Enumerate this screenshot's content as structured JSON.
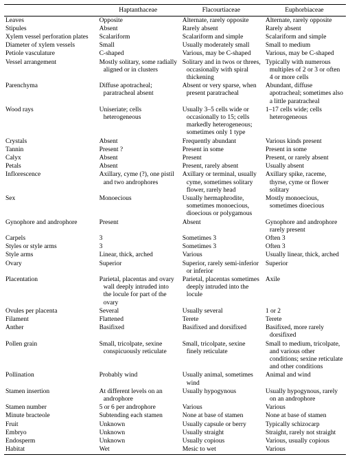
{
  "columns": [
    "Haptanthaceae",
    "Flacourtiaceae",
    "Euphorbiaceae"
  ],
  "rows": [
    {
      "l": "Leaves",
      "c": [
        "Opposite",
        "Alternate, rarely opposite",
        "Alternate, rarely opposite"
      ]
    },
    {
      "l": "Stipules",
      "c": [
        "Absent",
        "Rarely absent",
        "Rarely absent"
      ]
    },
    {
      "l": "Xylem vessel perforation plates",
      "c": [
        "Scalariform",
        "Scalariform and simple",
        "Scalariform and simple"
      ]
    },
    {
      "l": "Diameter of xylem vessels",
      "c": [
        "Small",
        "Usually moderately small",
        "Small to medium"
      ]
    },
    {
      "l": "Petiole vasculature",
      "c": [
        "C-shaped",
        "Various, may be C-shaped",
        "Various, may be C-shaped"
      ]
    },
    {
      "l": "Vessel arrangement",
      "c": [
        "Mostly solitary, some radially aligned or in clusters",
        "Solitary and in twos or threes, occasionally with spiral thickening",
        "Typically with numerous multiples of 2 or 3 or often 4 or more cells"
      ]
    },
    {
      "l": "Parenchyma",
      "c": [
        "Diffuse apotracheal; paratracheal absent",
        "Absent or very sparse, when present paratracheal",
        "Abundant, diffuse apotracheal; sometimes also a little paratracheal"
      ]
    },
    {
      "l": "Wood rays",
      "c": [
        "Uniseriate; cells heterogeneous",
        "Usually 3–5 cells wide or occasionally to 15; cells markedly heterogeneous; sometimes only 1 type",
        "1–17 cells wide; cells heterogeneous"
      ]
    },
    {
      "l": "Crystals",
      "c": [
        "Absent",
        "Frequently abundant",
        "Various kinds present"
      ]
    },
    {
      "l": "Tannin",
      "c": [
        "Present ?",
        "Present in some",
        "Present in some"
      ]
    },
    {
      "l": "Calyx",
      "c": [
        "Absent",
        "Present",
        "Present, or rarely absent"
      ]
    },
    {
      "l": "Petals",
      "c": [
        "Absent",
        "Present, rarely absent",
        "Usually absent"
      ]
    },
    {
      "l": "Inflorescence",
      "c": [
        "Axillary, cyme (?), one pistil and two androphores",
        "Axillary or terminal, usually cyme, sometimes solitary flower, rarely head",
        "Axillary spike, raceme, thyrse, cyme or flower solitary"
      ]
    },
    {
      "l": "Sex",
      "c": [
        "Monoecious",
        "Usually hermaphrodite, sometimes monoecious, dioecious or polygamous",
        "Mostly monoecious, sometimes dioecious"
      ]
    },
    {
      "l": "Gynophore and androphore",
      "c": [
        "Present",
        "Absent",
        "Gynophore and androphore rarely present"
      ]
    },
    {
      "l": "Carpels",
      "c": [
        "3",
        "Sometimes 3",
        "Often 3"
      ]
    },
    {
      "l": "Styles or style arms",
      "c": [
        "3",
        "Sometimes 3",
        "Often 3"
      ]
    },
    {
      "l": "Style arms",
      "c": [
        "Linear, thick, arched",
        "Various",
        "Usually linear, thick, arched"
      ]
    },
    {
      "l": "Ovary",
      "c": [
        "Superior",
        "Superior, rarely semi-inferior or inferior",
        "Superior"
      ]
    },
    {
      "l": "Placentation",
      "c": [
        "Parietal, placentas and ovary wall deeply intruded into the locule for part of the ovary",
        "Parietal, placentas sometimes deeply intruded into the locule",
        "Axile"
      ]
    },
    {
      "l": "Ovules per placenta",
      "c": [
        "Several",
        "Usually several",
        "1 or 2"
      ]
    },
    {
      "l": "Filament",
      "c": [
        "Flattened",
        "Terete",
        "Terete"
      ]
    },
    {
      "l": "Anther",
      "c": [
        "Basifixed",
        "Basifixed and dorsifixed",
        "Basifixed, more rarely dorsifixed"
      ]
    },
    {
      "l": "Pollen grain",
      "c": [
        "Small, tricolpate, sexine conspicuously reticulate",
        "Small, tricolpate, sexine finely reticulate",
        "Small to medium, tricolpate, and various other conditions; sexine reticulate and other conditions"
      ]
    },
    {
      "l": "Pollination",
      "c": [
        "Probably wind",
        "Usually animal, sometimes wind",
        "Animal and wind"
      ]
    },
    {
      "l": "Stamen insertion",
      "c": [
        "At different levels on an androphore",
        "Usually hypogynous",
        "Usually hypogynous, rarely on an androphore"
      ]
    },
    {
      "l": "Stamen number",
      "c": [
        "5 or 6 per androphore",
        "Various",
        "Various"
      ]
    },
    {
      "l": "Minute bracteole",
      "c": [
        "Subtending each stamen",
        "None at base of stamen",
        "None at base of stamen"
      ]
    },
    {
      "l": "Fruit",
      "c": [
        "Unknown",
        "Usually capsule or berry",
        "Typically schizocarp"
      ]
    },
    {
      "l": "Embryo",
      "c": [
        "Unknown",
        "Usually straight",
        "Straight, rarely not straight"
      ]
    },
    {
      "l": "Endosperm",
      "c": [
        "Unknown",
        "Usually copious",
        "Various, usually copious"
      ]
    },
    {
      "l": "Habitat",
      "c": [
        "Wet",
        "Mesic to wet",
        "Various"
      ]
    }
  ]
}
